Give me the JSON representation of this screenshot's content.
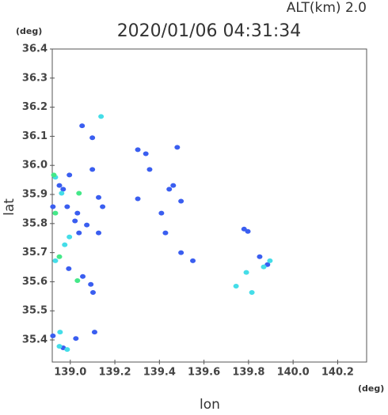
{
  "chart_data": {
    "type": "scatter",
    "title": "2020/01/06 04:31:34",
    "subtitle": "ALT(km) 2.0",
    "x_label": "lon",
    "y_label": "lat",
    "x_unit": "(deg)",
    "y_unit": "(deg)",
    "xlim": [
      138.919,
      140.33
    ],
    "ylim": [
      35.324,
      36.4
    ],
    "xticks": [
      {
        "value": 139,
        "label": "139.0"
      },
      {
        "value": 139.2,
        "label": "139.2"
      },
      {
        "value": 139.4,
        "label": "139.4"
      },
      {
        "value": 139.6,
        "label": "139.6"
      },
      {
        "value": 139.8,
        "label": "139.8"
      },
      {
        "value": 140,
        "label": "140.0"
      },
      {
        "value": 140.2,
        "label": "140.2"
      }
    ],
    "yticks": [
      35.4,
      35.5,
      35.6,
      35.7,
      35.8,
      35.9,
      {
        "value": 36,
        "label": "36.0"
      },
      36.1,
      36.2,
      36.3,
      36.4
    ],
    "series": [
      {
        "color": "#3a5ef0",
        "x": [
          139.053,
          139.099,
          139.099,
          138.996,
          138.951,
          138.968,
          138.922,
          138.986,
          139.032,
          139.021,
          139.039,
          139.074,
          139.127,
          139.145,
          139.127,
          138.993,
          139.056,
          139.092,
          139.102,
          139.109,
          138.922,
          138.968,
          139.025,
          139.339,
          139.303,
          139.444,
          139.462,
          139.497,
          139.48,
          139.409,
          139.427,
          139.497,
          139.55,
          139.78,
          139.797,
          139.85,
          139.885,
          139.303,
          139.356
        ],
        "values": [
          36.136,
          36.095,
          35.986,
          35.967,
          35.931,
          35.918,
          35.858,
          35.858,
          35.836,
          35.809,
          35.768,
          35.795,
          35.89,
          35.858,
          35.768,
          35.645,
          35.618,
          35.591,
          35.563,
          35.427,
          35.414,
          35.373,
          35.405,
          36.04,
          36.054,
          35.918,
          35.931,
          35.877,
          36.062,
          35.836,
          35.768,
          35.7,
          35.672,
          35.781,
          35.773,
          35.686,
          35.659,
          35.885,
          35.986
        ]
      },
      {
        "color": "#44dde8",
        "x": [
          139.138,
          138.933,
          138.961,
          138.933,
          138.975,
          138.996,
          139.744,
          139.79,
          139.815,
          139.896,
          139.868,
          138.954,
          138.951,
          138.986
        ],
        "values": [
          36.168,
          35.959,
          35.904,
          35.672,
          35.727,
          35.754,
          35.585,
          35.632,
          35.563,
          35.672,
          35.651,
          35.427,
          35.378,
          35.367
        ]
      },
      {
        "color": "#44e888",
        "x": [
          138.933,
          139.039,
          138.951,
          139.032,
          138.926
        ],
        "values": [
          35.836,
          35.904,
          35.686,
          35.604,
          35.967
        ]
      }
    ]
  }
}
